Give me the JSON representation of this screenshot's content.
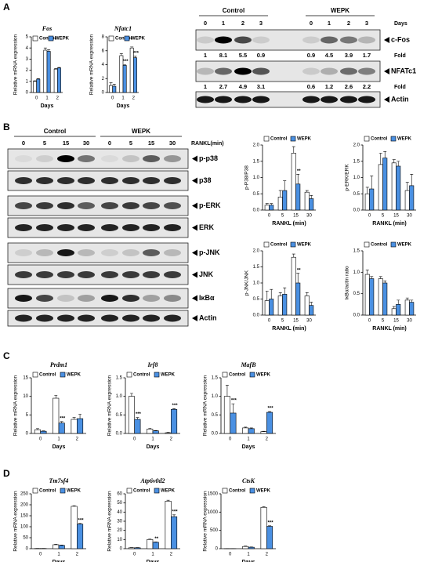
{
  "panel_labels": [
    "A",
    "B",
    "C",
    "D"
  ],
  "chart_data": [
    {
      "type": "bar",
      "title": "Fos",
      "ylabel": "Relative mRNA expression",
      "xlabel": "Days",
      "categories": [
        "0",
        "1",
        "2"
      ],
      "series": [
        {
          "name": "Control",
          "color": "#ffffff",
          "values": [
            1.0,
            3.8,
            2.1
          ],
          "errors": [
            0.05,
            0.2,
            0.05
          ]
        },
        {
          "name": "WEPK",
          "color": "#4a90e2",
          "values": [
            1.2,
            3.7,
            2.2
          ],
          "errors": [
            0.05,
            0.15,
            0.05
          ]
        }
      ],
      "ylim": [
        0,
        5
      ],
      "yticks": [
        0,
        1,
        2,
        3,
        4,
        5
      ],
      "annotations": []
    },
    {
      "type": "bar",
      "title": "Nfatc1",
      "ylabel": "Relative mRNA expression",
      "xlabel": "Days",
      "categories": [
        "0",
        "1",
        "2"
      ],
      "series": [
        {
          "name": "Control",
          "color": "#ffffff",
          "values": [
            1.0,
            5.3,
            6.4
          ],
          "errors": [
            0.4,
            0.3,
            0.15
          ]
        },
        {
          "name": "WEPK",
          "color": "#4a90e2",
          "values": [
            0.9,
            3.9,
            5.0
          ],
          "errors": [
            0.3,
            0.1,
            0.2
          ]
        }
      ],
      "ylim": [
        0,
        8
      ],
      "yticks": [
        0,
        2,
        4,
        6,
        8
      ],
      "annotations": [
        {
          "label": "***",
          "category": "1"
        },
        {
          "label": "***",
          "category": "2"
        }
      ]
    },
    {
      "type": "bar",
      "ylabel": "p-P38/P38",
      "xlabel": "RANKL (min)",
      "categories": [
        "0",
        "5",
        "15",
        "30"
      ],
      "series": [
        {
          "name": "Control",
          "color": "#ffffff",
          "values": [
            0.15,
            0.4,
            1.75,
            0.55
          ],
          "errors": [
            0.05,
            0.2,
            0.2,
            0.05
          ]
        },
        {
          "name": "WEPK",
          "color": "#4a90e2",
          "values": [
            0.15,
            0.6,
            0.8,
            0.35
          ],
          "errors": [
            0.05,
            0.3,
            0.3,
            0.1
          ]
        }
      ],
      "ylim": [
        0,
        2
      ],
      "yticks": [
        {
          "value": 0,
          "label": "0.0"
        },
        0.5,
        {
          "value": 1,
          "label": "1.0"
        },
        1.5,
        {
          "value": 2,
          "label": "2.0"
        }
      ],
      "annotations": [
        {
          "label": "**",
          "category": "15"
        }
      ]
    },
    {
      "type": "bar",
      "ylabel": "p-ERK/ERK",
      "xlabel": "RANKL (min)",
      "categories": [
        "0",
        "5",
        "15",
        "30"
      ],
      "series": [
        {
          "name": "Control",
          "color": "#ffffff",
          "values": [
            0.5,
            1.4,
            1.45,
            0.6
          ],
          "errors": [
            0.2,
            0.35,
            0.1,
            0.25
          ]
        },
        {
          "name": "WEPK",
          "color": "#4a90e2",
          "values": [
            0.65,
            1.6,
            1.35,
            0.75
          ],
          "errors": [
            0.4,
            0.2,
            0.15,
            0.35
          ]
        }
      ],
      "ylim": [
        0,
        2
      ],
      "yticks": [
        {
          "value": 0,
          "label": "0.0"
        },
        0.5,
        {
          "value": 1,
          "label": "1.0"
        },
        1.5,
        {
          "value": 2,
          "label": "2.0"
        }
      ],
      "annotations": []
    },
    {
      "type": "bar",
      "ylabel": "p-JNK/JNK",
      "xlabel": "RANKL (min)",
      "categories": [
        "0",
        "5",
        "15",
        "30"
      ],
      "series": [
        {
          "name": "Control",
          "color": "#ffffff",
          "values": [
            0.45,
            0.6,
            1.8,
            0.6
          ],
          "errors": [
            0.3,
            0.1,
            0.1,
            0.1
          ]
        },
        {
          "name": "WEPK",
          "color": "#4a90e2",
          "values": [
            0.5,
            0.65,
            1.0,
            0.3
          ],
          "errors": [
            0.3,
            0.2,
            0.3,
            0.1
          ]
        }
      ],
      "ylim": [
        0,
        2
      ],
      "yticks": [
        {
          "value": 0,
          "label": "0.0"
        },
        0.5,
        {
          "value": 1,
          "label": "1.0"
        },
        1.5,
        {
          "value": 2,
          "label": "2.0"
        }
      ],
      "annotations": [
        {
          "label": "**",
          "category": "15"
        }
      ]
    },
    {
      "type": "bar",
      "ylabel": "IκBα/actin ratio",
      "xlabel": "RANKL (min)",
      "categories": [
        "0",
        "5",
        "15",
        "30"
      ],
      "series": [
        {
          "name": "Control",
          "color": "#ffffff",
          "values": [
            0.95,
            0.85,
            0.15,
            0.35
          ],
          "errors": [
            0.1,
            0.05,
            0.05,
            0.05
          ]
        },
        {
          "name": "WEPK",
          "color": "#4a90e2",
          "values": [
            0.85,
            0.75,
            0.25,
            0.3
          ],
          "errors": [
            0.05,
            0.05,
            0.1,
            0.05
          ]
        }
      ],
      "ylim": [
        0,
        1.5
      ],
      "yticks": [
        {
          "value": 0,
          "label": "0.0"
        },
        0.5,
        {
          "value": 1,
          "label": "1.0"
        },
        1.5
      ],
      "annotations": []
    },
    {
      "type": "bar",
      "title": "Prdm1",
      "ylabel": "Relative mRNA expression",
      "xlabel": "Days",
      "categories": [
        "0",
        "1",
        "2"
      ],
      "series": [
        {
          "name": "Control",
          "color": "#ffffff",
          "values": [
            1.0,
            9.5,
            3.8
          ],
          "errors": [
            0.3,
            0.8,
            0.5
          ]
        },
        {
          "name": "WEPK",
          "color": "#4a90e2",
          "values": [
            0.6,
            2.8,
            4.0
          ],
          "errors": [
            0.1,
            0.4,
            1.2
          ]
        }
      ],
      "ylim": [
        0,
        15
      ],
      "yticks": [
        0,
        5,
        10,
        15
      ],
      "annotations": [
        {
          "label": "***",
          "category": "1"
        }
      ]
    },
    {
      "type": "bar",
      "title": "Irf8",
      "ylabel": "Relative mRNA expression",
      "xlabel": "Days",
      "categories": [
        "0",
        "1",
        "2"
      ],
      "series": [
        {
          "name": "Control",
          "color": "#ffffff",
          "values": [
            1.0,
            0.12,
            0.02
          ],
          "errors": [
            0.08,
            0.02,
            0.01
          ]
        },
        {
          "name": "WEPK",
          "color": "#4a90e2",
          "values": [
            0.38,
            0.07,
            0.65
          ],
          "errors": [
            0.05,
            0.01,
            0.02
          ]
        }
      ],
      "ylim": [
        0,
        1.5
      ],
      "yticks": [
        {
          "value": 0,
          "label": "0.0"
        },
        0.5,
        {
          "value": 1,
          "label": "1.0"
        },
        1.5
      ],
      "annotations": [
        {
          "label": "***",
          "category": "0"
        },
        {
          "label": "***",
          "category": "2"
        }
      ]
    },
    {
      "type": "bar",
      "title": "MafB",
      "ylabel": "Relative mRNA expression",
      "xlabel": "Days",
      "categories": [
        "0",
        "1",
        "2"
      ],
      "series": [
        {
          "name": "Control",
          "color": "#ffffff",
          "values": [
            1.0,
            0.15,
            0.05
          ],
          "errors": [
            0.3,
            0.02,
            0.01
          ]
        },
        {
          "name": "WEPK",
          "color": "#4a90e2",
          "values": [
            0.55,
            0.13,
            0.57
          ],
          "errors": [
            0.25,
            0.02,
            0.02
          ]
        }
      ],
      "ylim": [
        0,
        1.5
      ],
      "yticks": [
        {
          "value": 0,
          "label": "0.0"
        },
        0.5,
        {
          "value": 1,
          "label": "1.0"
        },
        1.5
      ],
      "annotations": [
        {
          "label": "***",
          "category": "0"
        },
        {
          "label": "***",
          "category": "2"
        }
      ]
    },
    {
      "type": "bar",
      "title": "Tm7sf4",
      "ylabel": "Relative mRNA expression",
      "xlabel": "Days",
      "categories": [
        "0",
        "1",
        "2"
      ],
      "series": [
        {
          "name": "Control",
          "color": "#ffffff",
          "values": [
            1,
            18,
            193
          ],
          "errors": [
            0.2,
            2,
            3
          ]
        },
        {
          "name": "WEPK",
          "color": "#4a90e2",
          "values": [
            1,
            15,
            112
          ],
          "errors": [
            0.2,
            2,
            3
          ]
        }
      ],
      "ylim": [
        0,
        250
      ],
      "yticks": [
        0,
        50,
        100,
        150,
        200,
        250
      ],
      "annotations": [
        {
          "label": "***",
          "category": "2"
        }
      ]
    },
    {
      "type": "bar",
      "title": "Atp6v0d2",
      "ylabel": "Relative mRNA expression",
      "xlabel": "Days",
      "categories": [
        "0",
        "1",
        "2"
      ],
      "series": [
        {
          "name": "Control",
          "color": "#ffffff",
          "values": [
            1,
            10,
            52
          ],
          "errors": [
            0.2,
            0.5,
            1
          ]
        },
        {
          "name": "WEPK",
          "color": "#4a90e2",
          "values": [
            1,
            7,
            35
          ],
          "errors": [
            0.2,
            0.4,
            2
          ]
        }
      ],
      "ylim": [
        0,
        60
      ],
      "yticks": [
        0,
        10,
        20,
        30,
        40,
        50,
        60
      ],
      "annotations": [
        {
          "label": "**",
          "category": "1"
        },
        {
          "label": "***",
          "category": "2"
        }
      ]
    },
    {
      "type": "bar",
      "title": "CtsK",
      "ylabel": "Relative mRNA expression",
      "xlabel": "Days",
      "categories": [
        "0",
        "1",
        "2"
      ],
      "series": [
        {
          "name": "Control",
          "color": "#ffffff",
          "values": [
            1,
            60,
            1130
          ],
          "errors": [
            0.5,
            10,
            15
          ]
        },
        {
          "name": "WEPK",
          "color": "#4a90e2",
          "values": [
            1,
            40,
            610
          ],
          "errors": [
            0.5,
            8,
            15
          ]
        }
      ],
      "ylim": [
        0,
        1500
      ],
      "yticks": [
        0,
        500,
        1000,
        1500
      ],
      "annotations": [
        {
          "label": "***",
          "category": "2"
        }
      ]
    }
  ],
  "blots": [
    {
      "groups": [
        "Control",
        "WEPK"
      ],
      "lanes": [
        "0",
        "1",
        "2",
        "3",
        "0",
        "1",
        "2",
        "3"
      ],
      "axis_label": "Days",
      "fold_label": "Fold",
      "rows": [
        {
          "name": "c-Fos",
          "fold": [
            1,
            8.1,
            5.5,
            0.9,
            0.9,
            4.5,
            3.9,
            1.7
          ]
        },
        {
          "name": "NFATc1",
          "fold": [
            1,
            2.7,
            4.9,
            3.1,
            0.6,
            1.2,
            2.6,
            2.2
          ]
        },
        {
          "name": "Actin"
        }
      ]
    },
    {
      "groups": [
        "Control",
        "WEPK"
      ],
      "lanes": [
        "0",
        "5",
        "15",
        "30",
        "0",
        "5",
        "15",
        "30"
      ],
      "axis_label": "RANKL(min)",
      "rows": [
        {
          "name": "p-p38"
        },
        {
          "name": "p38"
        },
        {
          "name": "p-ERK"
        },
        {
          "name": "ERK"
        },
        {
          "name": "p-JNK"
        },
        {
          "name": "JNK"
        },
        {
          "name": "IκBα"
        },
        {
          "name": "Actin"
        }
      ]
    }
  ]
}
